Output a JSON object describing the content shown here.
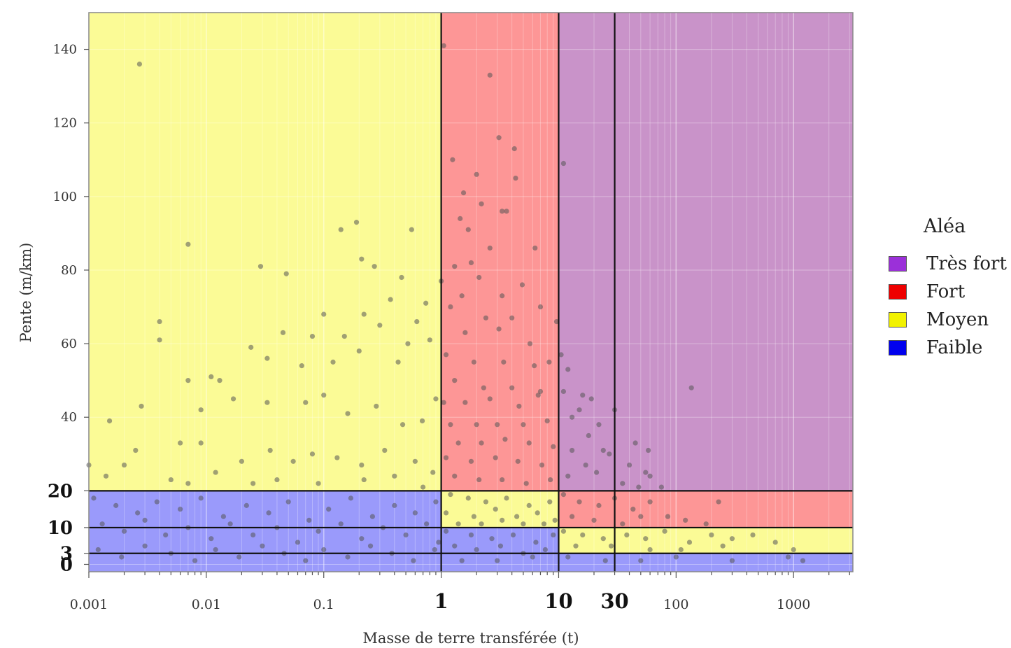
{
  "chart_data": {
    "type": "scatter",
    "xlabel": "Masse de terre transférée (t)",
    "ylabel": "Pente (m/km)",
    "x_scale": "log",
    "xlim": [
      0.001,
      3200
    ],
    "ylim": [
      -2,
      150
    ],
    "x_ticks": [
      {
        "value": 0.001,
        "label": "0.001",
        "bold": false
      },
      {
        "value": 0.01,
        "label": "0.01",
        "bold": false
      },
      {
        "value": 0.1,
        "label": "0.1",
        "bold": false
      },
      {
        "value": 1,
        "label": "1",
        "bold": true
      },
      {
        "value": 10,
        "label": "10",
        "bold": true
      },
      {
        "value": 30,
        "label": "30",
        "bold": true
      },
      {
        "value": 100,
        "label": "100",
        "bold": false
      },
      {
        "value": 1000,
        "label": "1000",
        "bold": false
      }
    ],
    "y_ticks": [
      {
        "value": 0,
        "label": "0",
        "bold": true
      },
      {
        "value": 3,
        "label": "3",
        "bold": true
      },
      {
        "value": 10,
        "label": "10",
        "bold": true
      },
      {
        "value": 20,
        "label": "20",
        "bold": true
      },
      {
        "value": 40,
        "label": "40",
        "bold": false
      },
      {
        "value": 60,
        "label": "60",
        "bold": false
      },
      {
        "value": 80,
        "label": "80",
        "bold": false
      },
      {
        "value": 100,
        "label": "100",
        "bold": false
      },
      {
        "value": 120,
        "label": "120",
        "bold": false
      },
      {
        "value": 140,
        "label": "140",
        "bold": false
      }
    ],
    "thresholds": {
      "x": [
        1,
        10,
        30
      ],
      "y": [
        3,
        10,
        20
      ]
    },
    "zones": [
      {
        "class": "moyen",
        "x": [
          0.001,
          1
        ],
        "y": [
          20,
          150
        ]
      },
      {
        "class": "faible",
        "x": [
          0.001,
          1
        ],
        "y": [
          -2,
          20
        ]
      },
      {
        "class": "fort",
        "x": [
          1,
          10
        ],
        "y": [
          20,
          150
        ]
      },
      {
        "class": "moyen",
        "x": [
          1,
          10
        ],
        "y": [
          10,
          20
        ]
      },
      {
        "class": "faible",
        "x": [
          1,
          10
        ],
        "y": [
          -2,
          10
        ]
      },
      {
        "class": "tres_fort",
        "x": [
          10,
          3200
        ],
        "y": [
          20,
          150
        ]
      },
      {
        "class": "fort",
        "x": [
          10,
          3200
        ],
        "y": [
          10,
          20
        ]
      },
      {
        "class": "moyen",
        "x": [
          10,
          3200
        ],
        "y": [
          3,
          10
        ]
      },
      {
        "class": "faible",
        "x": [
          10,
          3200
        ],
        "y": [
          -2,
          3
        ]
      }
    ],
    "zone_colors": {
      "tres_fort": "#c993c9",
      "fort": "#fd9696",
      "moyen": "#fbfb96",
      "faible": "#9a9afb"
    },
    "point_color": "#555555",
    "legend": {
      "title": "Aléa",
      "position": "right",
      "items": [
        {
          "label": "Très fort",
          "color": "#9b30d9"
        },
        {
          "label": "Fort",
          "color": "#ee0000"
        },
        {
          "label": "Moyen",
          "color": "#f2f200"
        },
        {
          "label": "Faible",
          "color": "#0000ee"
        }
      ]
    },
    "sample_points": [
      [
        0.0027,
        136
      ],
      [
        0.001,
        27
      ],
      [
        0.0014,
        24
      ],
      [
        0.0015,
        39
      ],
      [
        0.004,
        66
      ],
      [
        0.004,
        61
      ],
      [
        0.007,
        87
      ],
      [
        0.007,
        50
      ],
      [
        0.009,
        42
      ],
      [
        0.011,
        51
      ],
      [
        0.013,
        50
      ],
      [
        0.029,
        81
      ],
      [
        0.048,
        79
      ],
      [
        0.024,
        59
      ],
      [
        0.045,
        63
      ],
      [
        0.19,
        93
      ],
      [
        0.14,
        91
      ],
      [
        0.56,
        91
      ],
      [
        0.21,
        83
      ],
      [
        0.27,
        81
      ],
      [
        0.46,
        78
      ],
      [
        0.37,
        72
      ],
      [
        0.22,
        68
      ],
      [
        0.74,
        71
      ],
      [
        0.62,
        66
      ],
      [
        0.1,
        68
      ],
      [
        0.08,
        62
      ],
      [
        0.15,
        62
      ],
      [
        0.3,
        65
      ],
      [
        0.52,
        60
      ],
      [
        0.033,
        56
      ],
      [
        0.065,
        54
      ],
      [
        0.12,
        55
      ],
      [
        0.2,
        58
      ],
      [
        0.43,
        55
      ],
      [
        0.8,
        61
      ],
      [
        0.017,
        45
      ],
      [
        0.033,
        44
      ],
      [
        0.07,
        44
      ],
      [
        0.1,
        46
      ],
      [
        0.16,
        41
      ],
      [
        0.28,
        43
      ],
      [
        0.47,
        38
      ],
      [
        0.69,
        39
      ],
      [
        0.9,
        45
      ],
      [
        0.0028,
        43
      ],
      [
        0.006,
        33
      ],
      [
        0.009,
        33
      ],
      [
        0.02,
        28
      ],
      [
        0.035,
        31
      ],
      [
        0.055,
        28
      ],
      [
        0.08,
        30
      ],
      [
        0.13,
        29
      ],
      [
        0.21,
        27
      ],
      [
        0.33,
        31
      ],
      [
        0.6,
        28
      ],
      [
        0.85,
        25
      ],
      [
        0.002,
        27
      ],
      [
        0.0025,
        31
      ],
      [
        0.005,
        23
      ],
      [
        0.007,
        22
      ],
      [
        0.012,
        25
      ],
      [
        0.025,
        22
      ],
      [
        0.04,
        23
      ],
      [
        0.09,
        22
      ],
      [
        0.22,
        23
      ],
      [
        0.4,
        24
      ],
      [
        0.7,
        21
      ],
      [
        1.05,
        141
      ],
      [
        2.6,
        133
      ],
      [
        3.1,
        116
      ],
      [
        4.2,
        113
      ],
      [
        1.25,
        110
      ],
      [
        11,
        109
      ],
      [
        2.0,
        106
      ],
      [
        4.3,
        105
      ],
      [
        1.55,
        101
      ],
      [
        2.2,
        98
      ],
      [
        1.45,
        94
      ],
      [
        3.3,
        96
      ],
      [
        3.6,
        96
      ],
      [
        1.7,
        91
      ],
      [
        2.6,
        86
      ],
      [
        1.8,
        82
      ],
      [
        6.3,
        86
      ],
      [
        1.3,
        81
      ],
      [
        2.1,
        78
      ],
      [
        1.0,
        77
      ],
      [
        4.9,
        76
      ],
      [
        1.5,
        73
      ],
      [
        3.3,
        73
      ],
      [
        1.2,
        70
      ],
      [
        2.4,
        67
      ],
      [
        4.0,
        67
      ],
      [
        7.0,
        70
      ],
      [
        9.6,
        66
      ],
      [
        1.6,
        63
      ],
      [
        3.1,
        64
      ],
      [
        5.7,
        60
      ],
      [
        1.1,
        57
      ],
      [
        1.9,
        55
      ],
      [
        3.4,
        55
      ],
      [
        6.2,
        54
      ],
      [
        8.3,
        55
      ],
      [
        1.3,
        50
      ],
      [
        2.3,
        48
      ],
      [
        4.0,
        48
      ],
      [
        7.0,
        47
      ],
      [
        1.05,
        44
      ],
      [
        1.6,
        44
      ],
      [
        2.6,
        45
      ],
      [
        4.6,
        43
      ],
      [
        6.7,
        46
      ],
      [
        1.2,
        38
      ],
      [
        2.0,
        38
      ],
      [
        3.0,
        38
      ],
      [
        5.0,
        38
      ],
      [
        8.0,
        39
      ],
      [
        1.4,
        33
      ],
      [
        2.2,
        33
      ],
      [
        3.5,
        34
      ],
      [
        5.6,
        33
      ],
      [
        9.0,
        32
      ],
      [
        1.1,
        29
      ],
      [
        1.8,
        28
      ],
      [
        2.9,
        29
      ],
      [
        4.5,
        28
      ],
      [
        7.2,
        27
      ],
      [
        1.3,
        24
      ],
      [
        2.1,
        23
      ],
      [
        3.3,
        23
      ],
      [
        5.3,
        22
      ],
      [
        8.5,
        23
      ],
      [
        10.5,
        57
      ],
      [
        12,
        53
      ],
      [
        11,
        47
      ],
      [
        16,
        46
      ],
      [
        19,
        45
      ],
      [
        15,
        42
      ],
      [
        13,
        40
      ],
      [
        22,
        38
      ],
      [
        18,
        35
      ],
      [
        30,
        42
      ],
      [
        27,
        30
      ],
      [
        24,
        31
      ],
      [
        13,
        31
      ],
      [
        45,
        33
      ],
      [
        58,
        31
      ],
      [
        40,
        27
      ],
      [
        55,
        25
      ],
      [
        60,
        24
      ],
      [
        135,
        48
      ],
      [
        12,
        24
      ],
      [
        17,
        27
      ],
      [
        21,
        25
      ],
      [
        35,
        22
      ],
      [
        48,
        21
      ],
      [
        75,
        21
      ],
      [
        1.2,
        19
      ],
      [
        1.7,
        18
      ],
      [
        2.4,
        17
      ],
      [
        3.6,
        18
      ],
      [
        5.6,
        16
      ],
      [
        8.4,
        17
      ],
      [
        1.1,
        14
      ],
      [
        1.9,
        13
      ],
      [
        2.9,
        15
      ],
      [
        4.4,
        13
      ],
      [
        6.6,
        14
      ],
      [
        9.3,
        12
      ],
      [
        1.4,
        11
      ],
      [
        2.2,
        11
      ],
      [
        3.3,
        12
      ],
      [
        5.0,
        11
      ],
      [
        7.5,
        11
      ],
      [
        11,
        19
      ],
      [
        15,
        17
      ],
      [
        22,
        16
      ],
      [
        30,
        18
      ],
      [
        43,
        15
      ],
      [
        60,
        17
      ],
      [
        85,
        13
      ],
      [
        120,
        12
      ],
      [
        230,
        17
      ],
      [
        13,
        13
      ],
      [
        20,
        12
      ],
      [
        35,
        11
      ],
      [
        50,
        13
      ],
      [
        180,
        11
      ],
      [
        11,
        9
      ],
      [
        16,
        8
      ],
      [
        24,
        7
      ],
      [
        38,
        8
      ],
      [
        55,
        7
      ],
      [
        80,
        9
      ],
      [
        130,
        6
      ],
      [
        200,
        8
      ],
      [
        300,
        7
      ],
      [
        450,
        8
      ],
      [
        700,
        6
      ],
      [
        14,
        5
      ],
      [
        28,
        5
      ],
      [
        60,
        4
      ],
      [
        110,
        4
      ],
      [
        250,
        5
      ],
      [
        1000,
        4
      ],
      [
        1.1,
        9
      ],
      [
        1.8,
        8
      ],
      [
        2.7,
        7
      ],
      [
        4.1,
        8
      ],
      [
        6.4,
        6
      ],
      [
        9.0,
        8
      ],
      [
        1.3,
        5
      ],
      [
        2.0,
        4
      ],
      [
        3.2,
        5
      ],
      [
        5.0,
        3
      ],
      [
        7.7,
        4
      ],
      [
        1.5,
        1
      ],
      [
        3.0,
        1
      ],
      [
        6.0,
        2
      ],
      [
        12,
        2
      ],
      [
        25,
        1
      ],
      [
        50,
        1
      ],
      [
        100,
        2
      ],
      [
        300,
        1
      ],
      [
        900,
        2
      ],
      [
        1200,
        1
      ],
      [
        0.0011,
        18
      ],
      [
        0.0017,
        16
      ],
      [
        0.0026,
        14
      ],
      [
        0.0038,
        17
      ],
      [
        0.006,
        15
      ],
      [
        0.009,
        18
      ],
      [
        0.014,
        13
      ],
      [
        0.022,
        16
      ],
      [
        0.034,
        14
      ],
      [
        0.05,
        17
      ],
      [
        0.075,
        12
      ],
      [
        0.11,
        15
      ],
      [
        0.17,
        18
      ],
      [
        0.26,
        13
      ],
      [
        0.4,
        16
      ],
      [
        0.6,
        14
      ],
      [
        0.9,
        17
      ],
      [
        0.0013,
        11
      ],
      [
        0.002,
        9
      ],
      [
        0.003,
        12
      ],
      [
        0.0045,
        8
      ],
      [
        0.007,
        10
      ],
      [
        0.011,
        7
      ],
      [
        0.016,
        11
      ],
      [
        0.025,
        8
      ],
      [
        0.04,
        10
      ],
      [
        0.06,
        6
      ],
      [
        0.09,
        9
      ],
      [
        0.14,
        11
      ],
      [
        0.21,
        7
      ],
      [
        0.32,
        10
      ],
      [
        0.5,
        8
      ],
      [
        0.75,
        11
      ],
      [
        0.95,
        6
      ],
      [
        0.0012,
        4
      ],
      [
        0.0019,
        2
      ],
      [
        0.003,
        5
      ],
      [
        0.005,
        3
      ],
      [
        0.008,
        1
      ],
      [
        0.012,
        4
      ],
      [
        0.019,
        2
      ],
      [
        0.03,
        5
      ],
      [
        0.046,
        3
      ],
      [
        0.07,
        1
      ],
      [
        0.1,
        4
      ],
      [
        0.16,
        2
      ],
      [
        0.25,
        5
      ],
      [
        0.38,
        3
      ],
      [
        0.58,
        1
      ],
      [
        0.88,
        4
      ]
    ]
  }
}
